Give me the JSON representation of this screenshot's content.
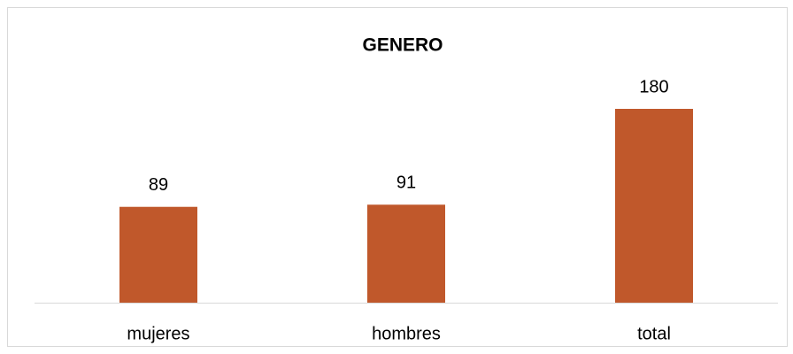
{
  "chart_data": {
    "type": "bar",
    "title": "GENERO",
    "categories": [
      "mujeres",
      "hombres",
      "total"
    ],
    "values": [
      89,
      91,
      180
    ],
    "color": "#c0582b"
  }
}
